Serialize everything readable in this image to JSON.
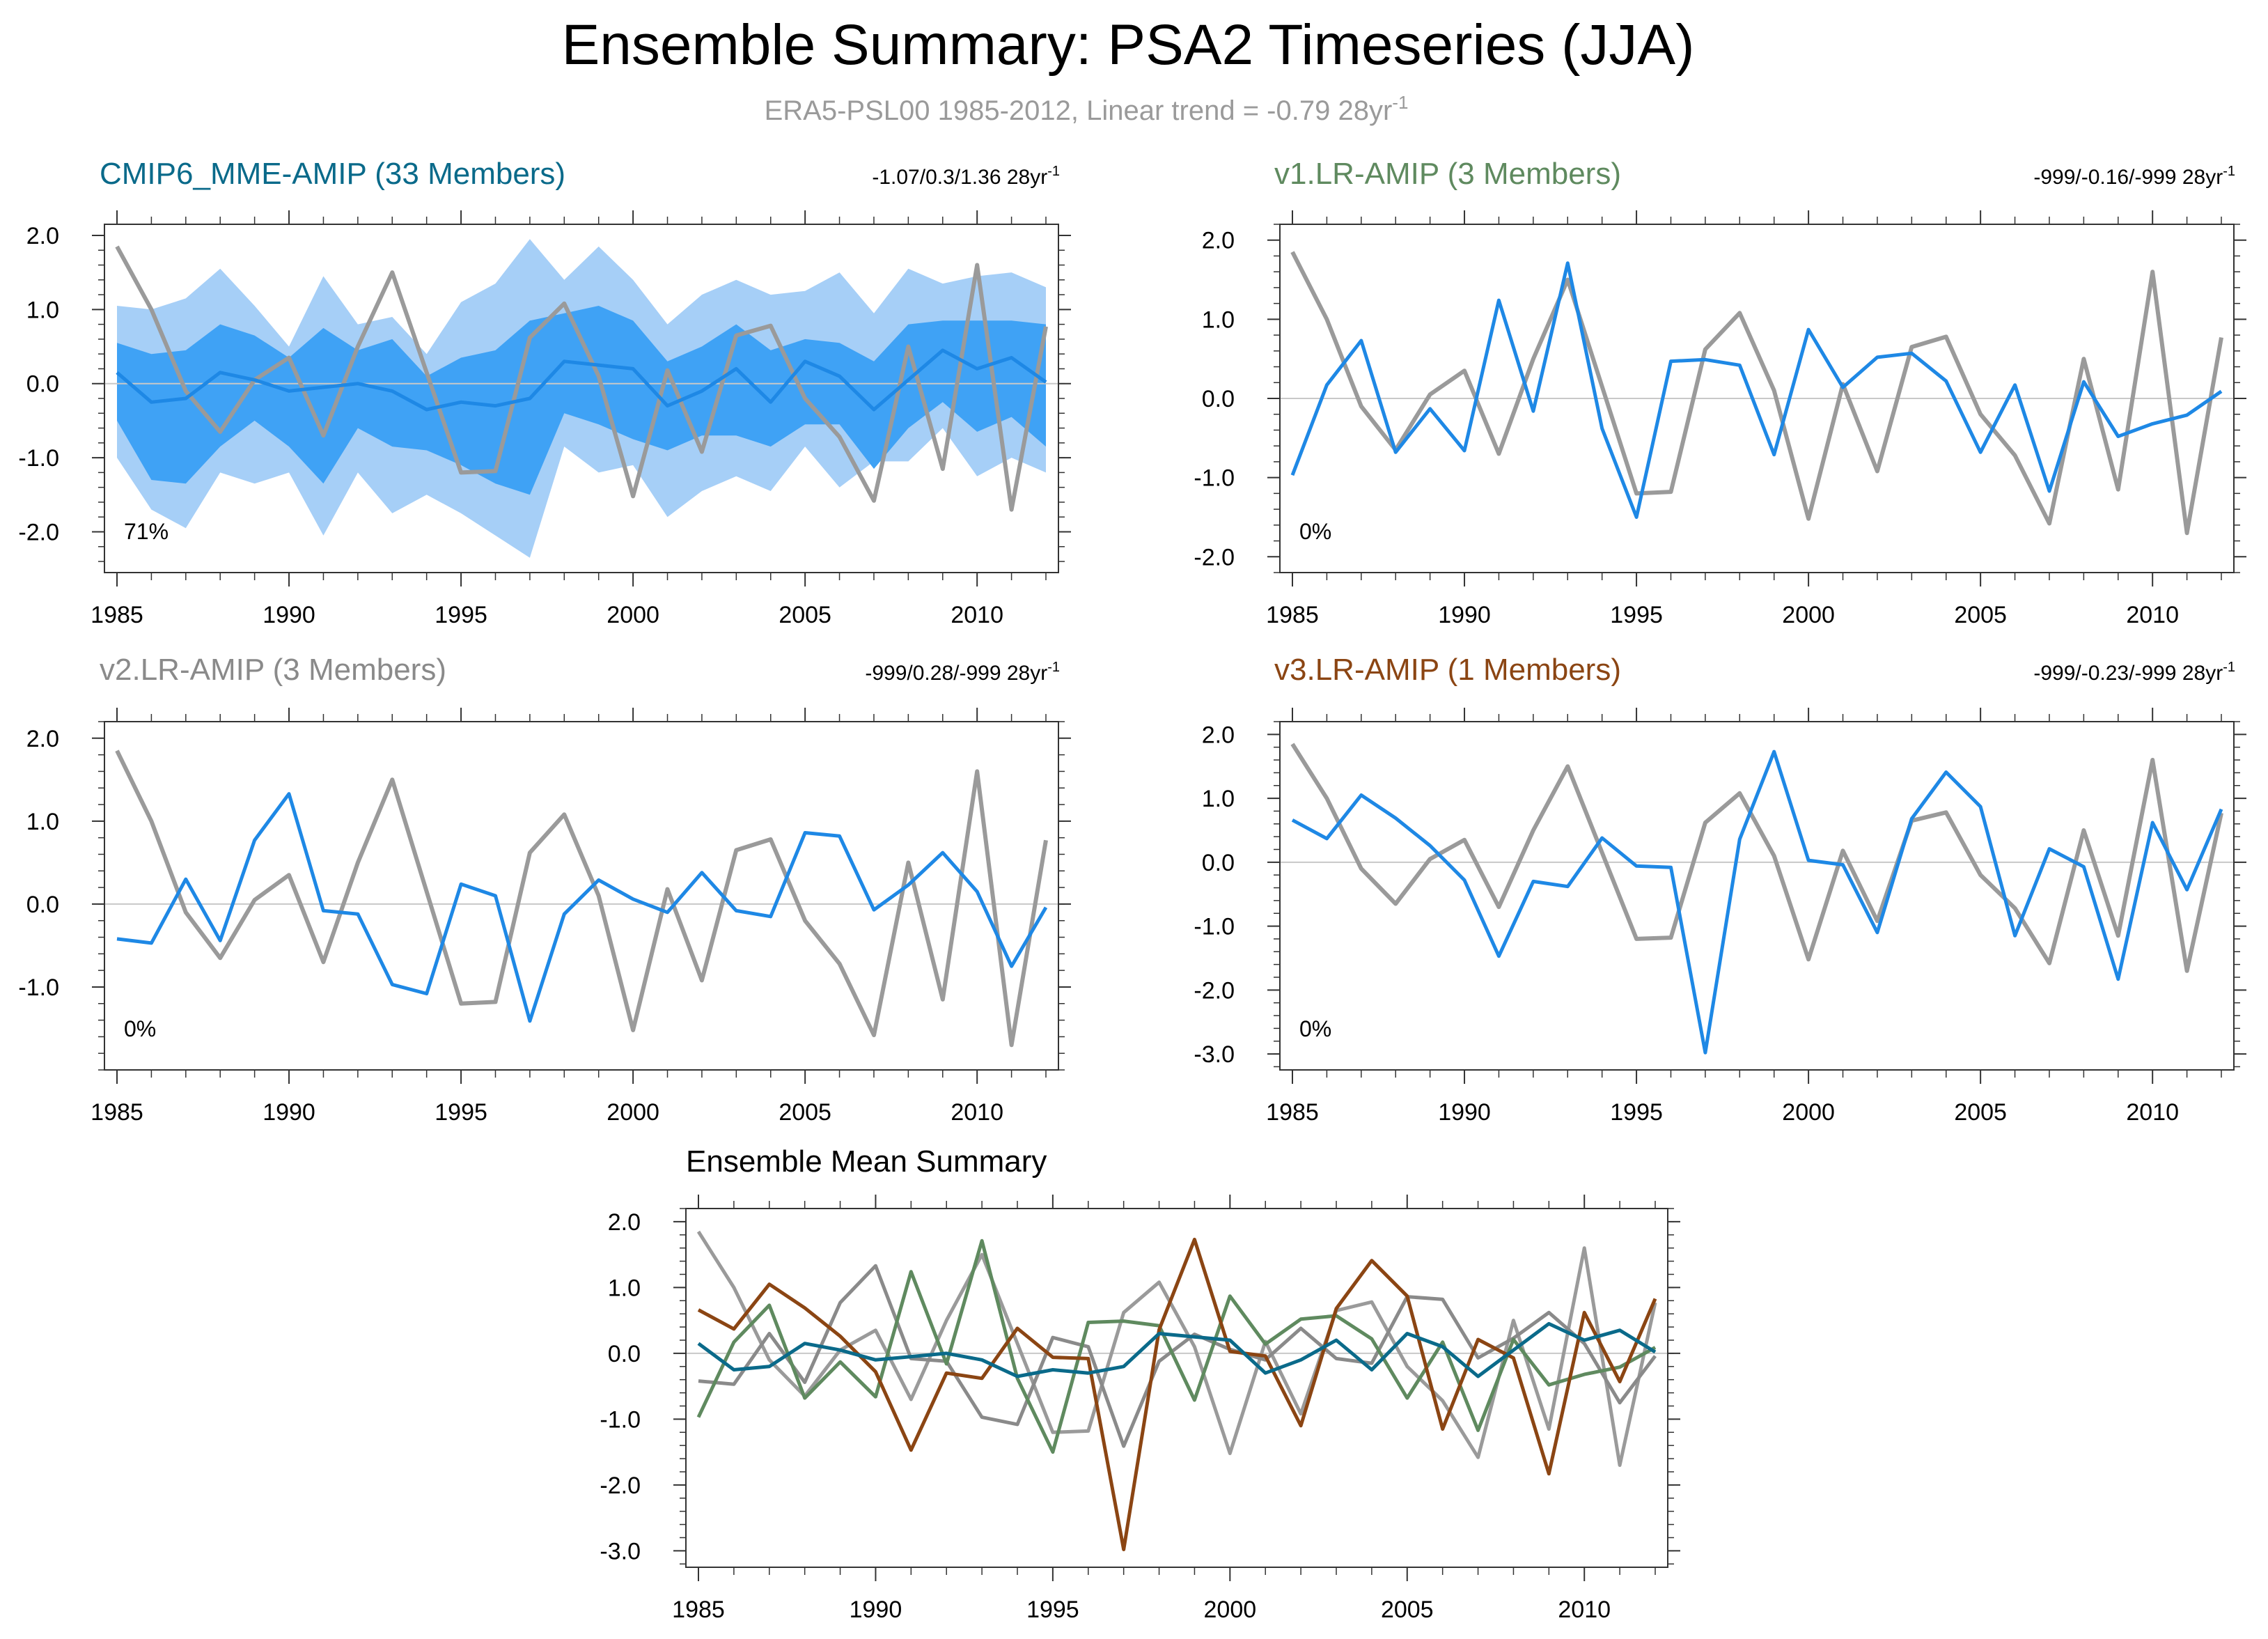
{
  "figure": {
    "title": "Ensemble Summary: PSA2 Timeseries (JJA)",
    "subtitle": "ERA5-PSL00 1985-2012, Linear trend = -0.79 28yr",
    "subtitle_sup": "-1"
  },
  "colors": {
    "obs": "#9a9a9a",
    "model": "#1e88e5",
    "mme_title": "#0a6a8a",
    "v1": "#5f8a5f",
    "v2": "#8a8a8a",
    "v3": "#8b4513",
    "band_outer": "#a6cff7",
    "band_inner": "#3fa2f5",
    "zero_line": "#c8c8c8",
    "axis": "#333333"
  },
  "chart_data": [
    {
      "id": "mme",
      "type": "line",
      "title": "CMIP6_MME-AMIP (33 Members)",
      "stats": "-1.07/0.3/1.36 28yr",
      "stats_sup": "-1",
      "pct": "71%",
      "xlim": [
        1985,
        2012
      ],
      "ylim": [
        -2.55,
        2.15
      ],
      "yticks": [
        2.0,
        1.0,
        0.0,
        -1.0,
        -2.0
      ],
      "ytick_labels": [
        "2.0",
        "1.0",
        "0.0",
        "-1.0",
        "-2.0"
      ],
      "xticks": [
        1985,
        1990,
        1995,
        2000,
        2005,
        2010
      ],
      "xtick_labels": [
        "1985",
        "1990",
        "1995",
        "2000",
        "2005",
        "2010"
      ],
      "x": [
        1985,
        1986,
        1987,
        1988,
        1989,
        1990,
        1991,
        1992,
        1993,
        1994,
        1995,
        1996,
        1997,
        1998,
        1999,
        2000,
        2001,
        2002,
        2003,
        2004,
        2005,
        2006,
        2007,
        2008,
        2009,
        2010,
        2011,
        2012
      ],
      "obs": [
        1.85,
        1.0,
        -0.1,
        -0.65,
        0.05,
        0.35,
        -0.7,
        0.5,
        1.5,
        0.15,
        -1.2,
        -1.18,
        0.62,
        1.08,
        0.1,
        -1.52,
        0.18,
        -0.92,
        0.65,
        0.78,
        -0.2,
        -0.72,
        -1.58,
        0.5,
        -1.15,
        1.6,
        -1.7,
        0.77
      ],
      "mean": [
        0.15,
        -0.25,
        -0.2,
        0.15,
        0.05,
        -0.1,
        -0.05,
        0.0,
        -0.1,
        -0.35,
        -0.25,
        -0.3,
        -0.2,
        0.3,
        0.25,
        0.2,
        -0.3,
        -0.1,
        0.2,
        -0.25,
        0.3,
        0.1,
        -0.35,
        0.05,
        0.45,
        0.2,
        0.35,
        0.02
      ],
      "band_outer": {
        "upper": [
          1.05,
          1.0,
          1.15,
          1.55,
          1.05,
          0.5,
          1.45,
          0.8,
          0.9,
          0.4,
          1.1,
          1.35,
          1.95,
          1.4,
          1.85,
          1.4,
          0.8,
          1.2,
          1.4,
          1.2,
          1.25,
          1.5,
          0.95,
          1.55,
          1.35,
          1.45,
          1.5,
          1.3
        ],
        "lower": [
          -1.0,
          -1.7,
          -1.95,
          -1.2,
          -1.35,
          -1.2,
          -2.05,
          -1.2,
          -1.75,
          -1.5,
          -1.75,
          -2.05,
          -2.35,
          -0.85,
          -1.2,
          -1.1,
          -1.8,
          -1.45,
          -1.25,
          -1.45,
          -0.85,
          -1.4,
          -1.05,
          -1.05,
          -0.6,
          -1.25,
          -1.0,
          -1.2
        ]
      },
      "band_inner": {
        "upper": [
          0.55,
          0.4,
          0.45,
          0.8,
          0.65,
          0.35,
          0.75,
          0.45,
          0.6,
          0.1,
          0.35,
          0.45,
          0.85,
          0.95,
          1.05,
          0.85,
          0.3,
          0.5,
          0.8,
          0.45,
          0.6,
          0.55,
          0.3,
          0.8,
          0.85,
          0.85,
          0.85,
          0.8
        ],
        "lower": [
          -0.5,
          -1.3,
          -1.35,
          -0.85,
          -0.5,
          -0.85,
          -1.35,
          -0.6,
          -0.85,
          -0.9,
          -1.1,
          -1.35,
          -1.5,
          -0.4,
          -0.55,
          -0.75,
          -0.9,
          -0.7,
          -0.7,
          -0.85,
          -0.55,
          -0.55,
          -1.15,
          -0.6,
          -0.25,
          -0.65,
          -0.45,
          -0.85
        ]
      }
    },
    {
      "id": "v1",
      "type": "line",
      "title": "v1.LR-AMIP (3 Members)",
      "stats": "-999/-0.16/-999 28yr",
      "stats_sup": "-1",
      "pct": "0%",
      "xlim": [
        1985,
        2012
      ],
      "ylim": [
        -2.2,
        2.2
      ],
      "yticks": [
        2.0,
        1.0,
        0.0,
        -1.0,
        -2.0
      ],
      "ytick_labels": [
        "2.0",
        "1.0",
        "0.0",
        "-1.0",
        "-2.0"
      ],
      "xticks": [
        1985,
        1990,
        1995,
        2000,
        2005,
        2010
      ],
      "xtick_labels": [
        "1985",
        "1990",
        "1995",
        "2000",
        "2005",
        "2010"
      ],
      "x": [
        1985,
        1986,
        1987,
        1988,
        1989,
        1990,
        1991,
        1992,
        1993,
        1994,
        1995,
        1996,
        1997,
        1998,
        1999,
        2000,
        2001,
        2002,
        2003,
        2004,
        2005,
        2006,
        2007,
        2008,
        2009,
        2010,
        2011,
        2012
      ],
      "obs": [
        1.85,
        1.0,
        -0.1,
        -0.65,
        0.05,
        0.35,
        -0.7,
        0.5,
        1.5,
        0.15,
        -1.2,
        -1.18,
        0.62,
        1.08,
        0.1,
        -1.52,
        0.18,
        -0.92,
        0.65,
        0.78,
        -0.2,
        -0.72,
        -1.58,
        0.5,
        -1.15,
        1.6,
        -1.7,
        0.77
      ],
      "model": [
        -0.97,
        0.17,
        0.73,
        -0.68,
        -0.13,
        -0.66,
        1.24,
        -0.16,
        1.71,
        -0.38,
        -1.5,
        0.47,
        0.49,
        0.42,
        -0.71,
        0.87,
        0.14,
        0.52,
        0.57,
        0.22,
        -0.68,
        0.17,
        -1.17,
        0.21,
        -0.48,
        -0.32,
        -0.21,
        0.09
      ]
    },
    {
      "id": "v2",
      "type": "line",
      "title": "v2.LR-AMIP (3 Members)",
      "stats": "-999/0.28/-999 28yr",
      "stats_sup": "-1",
      "pct": "0%",
      "xlim": [
        1985,
        2012
      ],
      "ylim": [
        -2.0,
        2.2
      ],
      "yticks": [
        2.0,
        1.0,
        0.0,
        -1.0
      ],
      "ytick_labels": [
        "2.0",
        "1.0",
        "0.0",
        "-1.0"
      ],
      "xticks": [
        1985,
        1990,
        1995,
        2000,
        2005,
        2010
      ],
      "xtick_labels": [
        "1985",
        "1990",
        "1995",
        "2000",
        "2005",
        "2010"
      ],
      "x": [
        1985,
        1986,
        1987,
        1988,
        1989,
        1990,
        1991,
        1992,
        1993,
        1994,
        1995,
        1996,
        1997,
        1998,
        1999,
        2000,
        2001,
        2002,
        2003,
        2004,
        2005,
        2006,
        2007,
        2008,
        2009,
        2010,
        2011,
        2012
      ],
      "obs": [
        1.85,
        1.0,
        -0.1,
        -0.65,
        0.05,
        0.35,
        -0.7,
        0.5,
        1.5,
        0.15,
        -1.2,
        -1.18,
        0.62,
        1.08,
        0.1,
        -1.52,
        0.18,
        -0.92,
        0.65,
        0.78,
        -0.2,
        -0.72,
        -1.58,
        0.5,
        -1.15,
        1.6,
        -1.7,
        0.77
      ],
      "model": [
        -0.42,
        -0.47,
        0.3,
        -0.44,
        0.77,
        1.33,
        -0.08,
        -0.12,
        -0.97,
        -1.08,
        0.24,
        0.1,
        -1.41,
        -0.12,
        0.29,
        0.06,
        -0.1,
        0.38,
        -0.08,
        -0.15,
        0.86,
        0.82,
        -0.07,
        0.23,
        0.62,
        0.15,
        -0.75,
        -0.04
      ]
    },
    {
      "id": "v3",
      "type": "line",
      "title": "v3.LR-AMIP (1 Members)",
      "stats": "-999/-0.23/-999 28yr",
      "stats_sup": "-1",
      "pct": "0%",
      "xlim": [
        1985,
        2012
      ],
      "ylim": [
        -3.25,
        2.2
      ],
      "yticks": [
        2.0,
        1.0,
        0.0,
        -1.0,
        -2.0,
        -3.0
      ],
      "ytick_labels": [
        "2.0",
        "1.0",
        "0.0",
        "-1.0",
        "-2.0",
        "-3.0"
      ],
      "xticks": [
        1985,
        1990,
        1995,
        2000,
        2005,
        2010
      ],
      "xtick_labels": [
        "1985",
        "1990",
        "1995",
        "2000",
        "2005",
        "2010"
      ],
      "x": [
        1985,
        1986,
        1987,
        1988,
        1989,
        1990,
        1991,
        1992,
        1993,
        1994,
        1995,
        1996,
        1997,
        1998,
        1999,
        2000,
        2001,
        2002,
        2003,
        2004,
        2005,
        2006,
        2007,
        2008,
        2009,
        2010,
        2011,
        2012
      ],
      "obs": [
        1.85,
        1.0,
        -0.1,
        -0.65,
        0.05,
        0.35,
        -0.7,
        0.5,
        1.5,
        0.15,
        -1.2,
        -1.18,
        0.62,
        1.08,
        0.1,
        -1.52,
        0.18,
        -0.92,
        0.65,
        0.78,
        -0.2,
        -0.72,
        -1.58,
        0.5,
        -1.15,
        1.6,
        -1.7,
        0.77
      ],
      "model": [
        0.66,
        0.37,
        1.05,
        0.69,
        0.26,
        -0.28,
        -1.47,
        -0.3,
        -0.38,
        0.38,
        -0.06,
        -0.08,
        -2.98,
        0.36,
        1.73,
        0.03,
        -0.04,
        -1.1,
        0.68,
        1.41,
        0.87,
        -1.15,
        0.21,
        -0.07,
        -1.83,
        0.62,
        -0.43,
        0.83
      ]
    },
    {
      "id": "summary",
      "type": "line",
      "title": "Ensemble Mean Summary",
      "xlim": [
        1985,
        2012
      ],
      "ylim": [
        -3.25,
        2.2
      ],
      "yticks": [
        2.0,
        1.0,
        0.0,
        -1.0,
        -2.0,
        -3.0
      ],
      "ytick_labels": [
        "2.0",
        "1.0",
        "0.0",
        "-1.0",
        "-2.0",
        "-3.0"
      ],
      "xticks": [
        1985,
        1990,
        1995,
        2000,
        2005,
        2010
      ],
      "xtick_labels": [
        "1985",
        "1990",
        "1995",
        "2000",
        "2005",
        "2010"
      ],
      "x": [
        1985,
        1986,
        1987,
        1988,
        1989,
        1990,
        1991,
        1992,
        1993,
        1994,
        1995,
        1996,
        1997,
        1998,
        1999,
        2000,
        2001,
        2002,
        2003,
        2004,
        2005,
        2006,
        2007,
        2008,
        2009,
        2010,
        2011,
        2012
      ],
      "series": [
        {
          "name": "ERA5-PSL00",
          "color_key": "obs",
          "values": [
            1.85,
            1.0,
            -0.1,
            -0.65,
            0.05,
            0.35,
            -0.7,
            0.5,
            1.5,
            0.15,
            -1.2,
            -1.18,
            0.62,
            1.08,
            0.1,
            -1.52,
            0.18,
            -0.92,
            0.65,
            0.78,
            -0.2,
            -0.72,
            -1.58,
            0.5,
            -1.15,
            1.6,
            -1.7,
            0.77
          ]
        },
        {
          "name": "v2.LR-AMIP",
          "color_key": "v2",
          "values": [
            -0.42,
            -0.47,
            0.3,
            -0.44,
            0.77,
            1.33,
            -0.08,
            -0.12,
            -0.97,
            -1.08,
            0.24,
            0.1,
            -1.41,
            -0.12,
            0.29,
            0.06,
            -0.1,
            0.38,
            -0.08,
            -0.15,
            0.86,
            0.82,
            -0.07,
            0.23,
            0.62,
            0.15,
            -0.75,
            -0.04
          ]
        },
        {
          "name": "v1.LR-AMIP",
          "color_key": "v1",
          "values": [
            -0.97,
            0.17,
            0.73,
            -0.68,
            -0.13,
            -0.66,
            1.24,
            -0.16,
            1.71,
            -0.38,
            -1.5,
            0.47,
            0.49,
            0.42,
            -0.71,
            0.87,
            0.14,
            0.52,
            0.57,
            0.22,
            -0.68,
            0.17,
            -1.17,
            0.21,
            -0.48,
            -0.32,
            -0.21,
            0.09
          ]
        },
        {
          "name": "v3.LR-AMIP",
          "color_key": "v3",
          "values": [
            0.66,
            0.37,
            1.05,
            0.69,
            0.26,
            -0.28,
            -1.47,
            -0.3,
            -0.38,
            0.38,
            -0.06,
            -0.08,
            -2.98,
            0.36,
            1.73,
            0.03,
            -0.04,
            -1.1,
            0.68,
            1.41,
            0.87,
            -1.15,
            0.21,
            -0.07,
            -1.83,
            0.62,
            -0.43,
            0.83
          ]
        },
        {
          "name": "CMIP6_MME-AMIP",
          "color_key": "mme_title",
          "values": [
            0.15,
            -0.25,
            -0.2,
            0.15,
            0.05,
            -0.1,
            -0.05,
            0.0,
            -0.1,
            -0.35,
            -0.25,
            -0.3,
            -0.2,
            0.3,
            0.25,
            0.2,
            -0.3,
            -0.1,
            0.2,
            -0.25,
            0.3,
            0.1,
            -0.35,
            0.05,
            0.45,
            0.2,
            0.35,
            0.02
          ]
        }
      ]
    }
  ]
}
